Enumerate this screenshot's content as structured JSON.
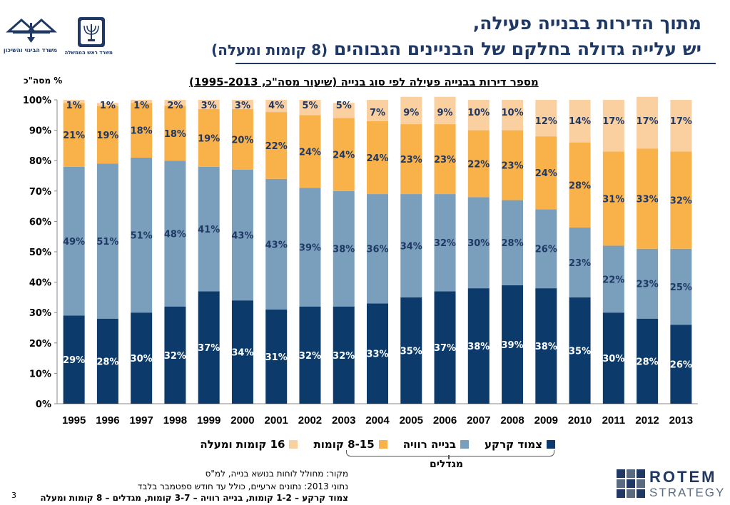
{
  "header": {
    "title_line1": "מתוך הדירות בבנייה פעילה,",
    "title_line2_main": "יש עלייה גדולה בחלקם של הבניינים הגבוהים",
    "title_line2_sub": "(8 קומות ומעלה)"
  },
  "logos": {
    "left_label": "משרד הבינוי והשיכון",
    "mid_label": "משרד ראש הממשלה",
    "rotem_top": "ROTEM",
    "rotem_bottom": "STRATEGY"
  },
  "colors": {
    "ground": "#0b3a6b",
    "standard": "#7a9fbd",
    "mid": "#f9b24a",
    "high": "#fbd0a1"
  },
  "chart_data": {
    "type": "bar",
    "stacked": true,
    "title": "מספר דירות בבנייה פעילה לפי סוג בנייה (שיעור מסה\"כ, 1995-2013)",
    "ylabel": "% מסה\"כ",
    "xlabel": "",
    "ylim": [
      0,
      100
    ],
    "yticks": [
      "0%",
      "10%",
      "20%",
      "30%",
      "40%",
      "50%",
      "60%",
      "70%",
      "80%",
      "90%",
      "100%"
    ],
    "grid": false,
    "legend_position": "bottom",
    "categories": [
      "1995",
      "1996",
      "1997",
      "1998",
      "1999",
      "2000",
      "2001",
      "2002",
      "2003",
      "2004",
      "2005",
      "2006",
      "2007",
      "2008",
      "2009",
      "2010",
      "2011",
      "2012",
      "2013"
    ],
    "series": [
      {
        "name": "צמוד קרקע",
        "color": "#0b3a6b",
        "values": [
          29,
          28,
          30,
          32,
          37,
          34,
          31,
          32,
          32,
          33,
          35,
          37,
          38,
          39,
          38,
          35,
          30,
          28,
          26
        ]
      },
      {
        "name": "בנייה רוויה",
        "color": "#7a9fbd",
        "values": [
          49,
          51,
          51,
          48,
          41,
          43,
          43,
          39,
          38,
          36,
          34,
          32,
          30,
          28,
          26,
          23,
          22,
          23,
          25
        ]
      },
      {
        "name": "8-15 קומות",
        "color": "#f9b24a",
        "values": [
          21,
          19,
          18,
          18,
          19,
          20,
          22,
          24,
          24,
          24,
          23,
          23,
          22,
          23,
          24,
          28,
          31,
          33,
          32
        ]
      },
      {
        "name": "16 קומות ומעלה",
        "color": "#fbd0a1",
        "values": [
          1,
          1,
          1,
          2,
          3,
          3,
          4,
          5,
          5,
          7,
          9,
          9,
          10,
          10,
          12,
          14,
          17,
          17,
          17
        ]
      }
    ],
    "bracket_label": "מגדלים"
  },
  "footer": {
    "source": "מקור:  מחולל לוחות בנושא בנייה, למ\"ס",
    "data_note": "נתוני 2013: נתונים ארעיים, כולל עד חודש ספטמבר בלבד",
    "definition": "צמוד קרקע – 1-2 קומות, בנייה רוויה – 3-7 קומות, מגדלים – 8 קומות ומעלה",
    "page_number": "3"
  }
}
